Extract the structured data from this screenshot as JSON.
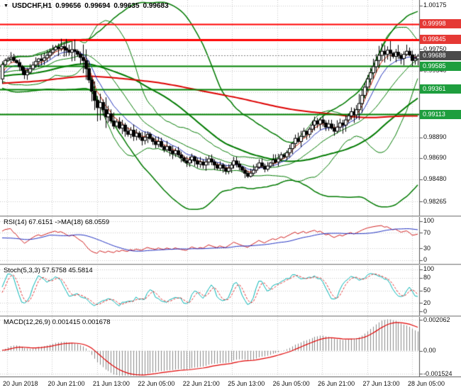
{
  "title": {
    "symbol": "USDCHF,H1",
    "open": "0.99656",
    "high": "0.99694",
    "low": "0.99635",
    "close": "0.99683"
  },
  "panels": {
    "rsi": {
      "label": "RSI(14) 67.6151 ->MA(18) 68.0559",
      "levels": [
        "100",
        "70",
        "30",
        "0"
      ]
    },
    "stoch": {
      "label": "Stoch(5,3,3) 57.5758 45.5814",
      "levels": [
        "100",
        "80",
        "50",
        "20",
        "0"
      ]
    },
    "macd": {
      "label": "MACD(12,26,9) 0.001415 0.001678",
      "axis_labels": [
        "0.002062",
        "0.00",
        "-0.001524"
      ]
    }
  },
  "y_axis": {
    "labels": [
      {
        "text": "1.00175",
        "price": 1.00175
      },
      {
        "text": "0.99750",
        "price": 0.9975
      },
      {
        "text": "0.99540",
        "price": 0.9954
      },
      {
        "text": "0.98890",
        "price": 0.9889
      },
      {
        "text": "0.98690",
        "price": 0.9869
      },
      {
        "text": "0.98480",
        "price": 0.9848
      },
      {
        "text": "0.98265",
        "price": 0.98265
      }
    ],
    "badges": [
      {
        "text": "0.99998",
        "price": 0.99998,
        "color": "#e53935",
        "type": "resistance"
      },
      {
        "text": "0.99845",
        "price": 0.99845,
        "color": "#e53935",
        "type": "resistance"
      },
      {
        "text": "0.99688",
        "price": 0.99688,
        "color": "#4a4a4a",
        "type": "current-price"
      },
      {
        "text": "0.99585",
        "price": 0.99585,
        "color": "#1e9e3e",
        "type": "support"
      },
      {
        "text": "0.99361",
        "price": 0.99361,
        "color": "#1e9e3e",
        "type": "support"
      },
      {
        "text": "0.99113",
        "price": 0.99113,
        "color": "#1e9e3e",
        "type": "support"
      }
    ]
  },
  "x_axis": {
    "labels": [
      "20 Jun 2018",
      "20 Jun 21:00",
      "21 Jun 13:00",
      "22 Jun 05:00",
      "22 Jun 21:00",
      "25 Jun 13:00",
      "26 Jun 05:00",
      "26 Jun 21:00",
      "27 Jun 13:00",
      "28 Jun 05:00"
    ]
  },
  "colors": {
    "background": "#ffffff",
    "grid": "#c9c9c9",
    "candle_outline": "#000000",
    "bull": "#ffffff",
    "bear": "#000000",
    "bollinger": "#007a00",
    "ma_green": "#007a00",
    "ma_red": "#dd0000",
    "ema_fast_red": "#cc2200",
    "ema_fast_blue": "#2233bb",
    "resistance": "#ff0000",
    "support": "#008000",
    "current_price_line": "#808080",
    "rsi": "#d02020",
    "rsi_ma": "#2030c0",
    "stoch_k": "#00b3b3",
    "stoch_d": "#e03030",
    "macd_hist": "#8a8a8a",
    "macd_signal": "#e00000",
    "border": "#555555"
  },
  "chart_data": {
    "type": "candlestick",
    "symbol": "USDCHF",
    "timeframe": "H1",
    "title": "USDCHF,H1 0.99656 0.99694 0.99635 0.99683",
    "visible_price_range": [
      0.98127,
      1.0023
    ],
    "grid_prices": [
      1.00175,
      0.9996,
      0.9975,
      0.9954,
      0.9933,
      0.9912,
      0.9889,
      0.9869,
      0.9848,
      0.98265
    ],
    "x_labels": [
      "20 Jun 2018",
      "20 Jun 21:00",
      "21 Jun 13:00",
      "22 Jun 05:00",
      "22 Jun 21:00",
      "25 Jun 13:00",
      "26 Jun 05:00",
      "26 Jun 21:00",
      "27 Jun 13:00",
      "28 Jun 05:00"
    ],
    "hourly_closes": [
      0.996,
      0.9964,
      0.99655,
      0.9967,
      0.9964,
      0.9962,
      0.9958,
      0.99545,
      0.995,
      0.99525,
      0.9956,
      0.99595,
      0.9963,
      0.99655,
      0.9964,
      0.99665,
      0.9969,
      0.9972,
      0.99745,
      0.9977,
      0.99755,
      0.99775,
      0.9976,
      0.9974,
      0.9972,
      0.99745,
      0.9973,
      0.997,
      0.9967,
      0.9964,
      0.9956,
      0.9945,
      0.9934,
      0.9925,
      0.9918,
      0.9923,
      0.9916,
      0.9909,
      0.9912,
      0.9905,
      0.99,
      0.9904,
      0.9898,
      0.9901,
      0.9895,
      0.9892,
      0.9896,
      0.989,
      0.9893,
      0.9889,
      0.9886,
      0.9889,
      0.9892,
      0.9888,
      0.9885,
      0.9882,
      0.9885,
      0.988,
      0.9877,
      0.988,
      0.9876,
      0.9873,
      0.9876,
      0.9872,
      0.9869,
      0.9866,
      0.9864,
      0.9867,
      0.987,
      0.9866,
      0.9863,
      0.9865,
      0.9862,
      0.9865,
      0.9868,
      0.9865,
      0.9862,
      0.9859,
      0.9862,
      0.9859,
      0.9856,
      0.9859,
      0.9862,
      0.9866,
      0.9863,
      0.986,
      0.9857,
      0.9854,
      0.9851,
      0.9854,
      0.9857,
      0.986,
      0.9864,
      0.9861,
      0.9858,
      0.9861,
      0.9864,
      0.9867,
      0.9865,
      0.9868,
      0.9872,
      0.987,
      0.9874,
      0.9878,
      0.9883,
      0.9888,
      0.9885,
      0.989,
      0.9895,
      0.9892,
      0.9897,
      0.9901,
      0.9905,
      0.9902,
      0.9906,
      0.9903,
      0.9899,
      0.9902,
      0.9898,
      0.9895,
      0.9899,
      0.9903,
      0.9901,
      0.9906,
      0.991,
      0.9914,
      0.9911,
      0.9916,
      0.9922,
      0.993,
      0.9938,
      0.9946,
      0.9952,
      0.9958,
      0.9964,
      0.9969,
      0.9973,
      0.997,
      0.9974,
      0.9971,
      0.9968,
      0.9972,
      0.9969,
      0.9966,
      0.997,
      0.9973,
      0.99695,
      0.9964,
      0.99656,
      0.99683
    ],
    "last_candle": {
      "open": 0.99656,
      "high": 0.99694,
      "low": 0.99635,
      "close": 0.99683
    },
    "levels": {
      "resistance": [
        0.99998,
        0.99845
      ],
      "support": [
        0.99585,
        0.99361,
        0.99113
      ],
      "current_price": 0.99688
    },
    "overlays": {
      "bollinger": [
        20,
        2
      ],
      "bollinger_wide": [
        48,
        2.5
      ],
      "ma_green_period": 48,
      "ma_red_period": 144,
      "ema_fast_red": 5,
      "ema_fast_blue": 10
    },
    "indicators": {
      "rsi": {
        "period": 14,
        "ma_period": 18,
        "value": 67.6151,
        "ma_value": 68.0559,
        "levels": [
          100,
          70,
          30,
          0
        ]
      },
      "stoch": {
        "k": 5,
        "d": 3,
        "slowing": 3,
        "value_k": 57.5758,
        "value_d": 45.5814,
        "levels": [
          100,
          80,
          50,
          20,
          0
        ]
      },
      "macd": {
        "fast": 12,
        "slow": 26,
        "signal": 9,
        "value": 0.001415,
        "signal_value": 0.001678,
        "axis_values": [
          0.002062,
          0,
          -0.001524
        ]
      }
    }
  }
}
